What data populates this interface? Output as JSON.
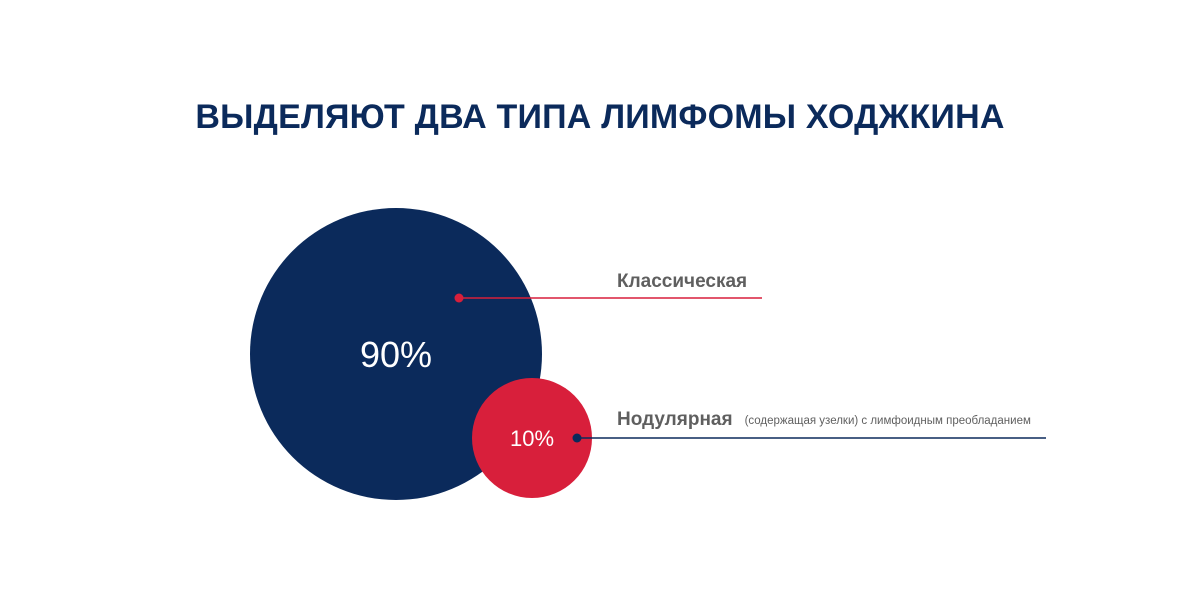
{
  "title": "ВЫДЕЛЯЮТ ДВА ТИПА ЛИМФОМЫ ХОДЖКИНА",
  "colors": {
    "title": "#0b2a5b",
    "classic": "#0b2a5b",
    "nodular": "#d81f3b",
    "label_text": "#5f5f5f"
  },
  "chart_data": {
    "type": "bubble",
    "title": "ВЫДЕЛЯЮТ ДВА ТИПА ЛИМФОМЫ ХОДЖКИНА",
    "unit": "%",
    "series": [
      {
        "name": "Классическая",
        "value": 90,
        "value_label": "90%",
        "note": "",
        "color": "#0b2a5b",
        "leader_color": "#d81f3b"
      },
      {
        "name": "Нодулярная",
        "value": 10,
        "value_label": "10%",
        "note": "(содержащая узелки) с лимфоидным преобладанием",
        "color": "#d81f3b",
        "leader_color": "#0b2a5b"
      }
    ],
    "legend": "callout-right",
    "grid": false
  }
}
